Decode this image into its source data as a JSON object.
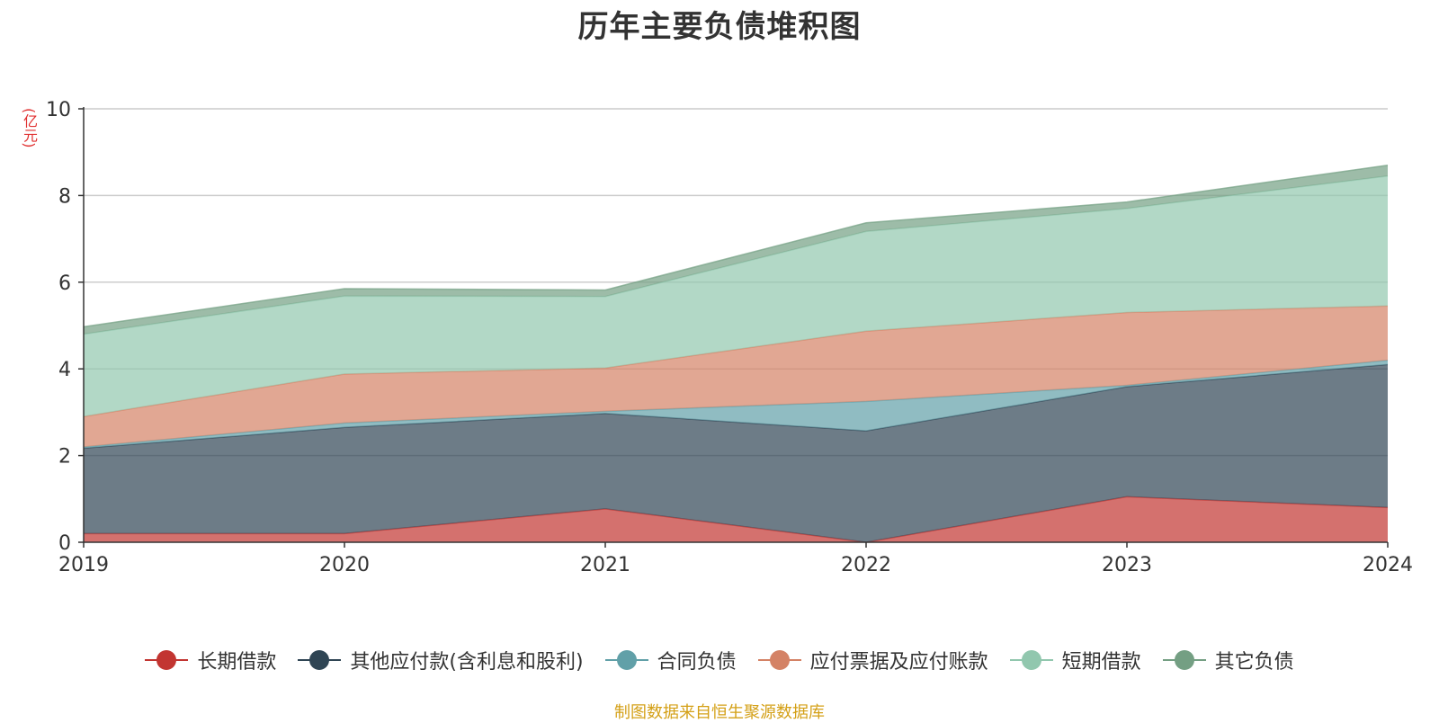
{
  "chart_data": {
    "type": "area",
    "stacked": true,
    "title": "历年主要负债堆积图",
    "ylabel": "(亿元)",
    "xlabel": "",
    "categories": [
      "2019",
      "2020",
      "2021",
      "2022",
      "2023",
      "2024"
    ],
    "ylim": [
      0,
      10
    ],
    "yticks": [
      0,
      2,
      4,
      6,
      8,
      10
    ],
    "grid": true,
    "legend_position": "bottom",
    "series": [
      {
        "name": "长期借款",
        "color": "#c23531",
        "values": [
          0.2,
          0.2,
          0.77,
          0.0,
          1.05,
          0.8
        ]
      },
      {
        "name": "其他应付款(含利息和股利)",
        "color": "#2f4554",
        "values": [
          1.97,
          2.45,
          2.2,
          2.57,
          2.54,
          3.3
        ]
      },
      {
        "name": "合同负债",
        "color": "#61a0a8",
        "values": [
          0.03,
          0.1,
          0.05,
          0.68,
          0.03,
          0.1
        ]
      },
      {
        "name": "应付票据及应付账款",
        "color": "#d48265",
        "values": [
          0.7,
          1.13,
          1.0,
          1.62,
          1.68,
          1.25
        ]
      },
      {
        "name": "短期借款",
        "color": "#91c7ae",
        "values": [
          1.9,
          1.8,
          1.65,
          2.3,
          2.4,
          3.0
        ]
      },
      {
        "name": "其它负债",
        "color": "#749f83",
        "values": [
          0.17,
          0.17,
          0.15,
          0.2,
          0.15,
          0.25
        ]
      }
    ],
    "source": "制图数据来自恒生聚源数据库"
  }
}
